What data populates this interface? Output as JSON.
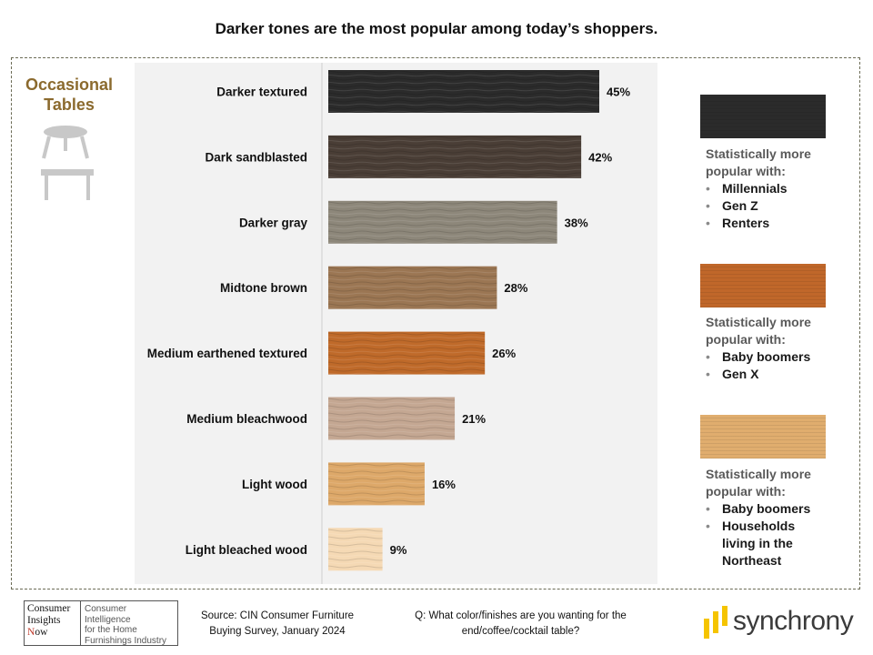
{
  "header": {
    "title": "Darker tones are the most popular among today’s shoppers."
  },
  "side": {
    "title_line1": "Occasional",
    "title_line2": "Tables",
    "icon_round": "round-table-icon",
    "icon_rect": "rectangular-table-icon"
  },
  "chart_data": {
    "type": "bar",
    "orientation": "horizontal",
    "categories": [
      "Darker textured",
      "Dark sandblasted",
      "Darker gray",
      "Midtone brown",
      "Medium earthened textured",
      "Medium bleachwood",
      "Light wood",
      "Light bleached wood"
    ],
    "values": [
      45,
      42,
      38,
      28,
      26,
      21,
      16,
      9
    ],
    "value_labels": [
      "45%",
      "42%",
      "38%",
      "28%",
      "26%",
      "21%",
      "16%",
      "9%"
    ],
    "unit": "%",
    "xlim": [
      0,
      50
    ],
    "colors": [
      "#2b2b2b",
      "#4a3e36",
      "#8d877a",
      "#9b7653",
      "#bf6a2a",
      "#c4a792",
      "#dda869",
      "#f5d9b4"
    ],
    "grid": false,
    "legend": "none"
  },
  "callouts": [
    {
      "swatch_color": "#2b2b2b",
      "heading_line1": "Statistically more",
      "heading_line2": "popular with:",
      "items": [
        "Millennials",
        "Gen Z",
        "Renters"
      ]
    },
    {
      "swatch_color": "#c0672a",
      "heading_line1": "Statistically more",
      "heading_line2": "popular with:",
      "items": [
        "Baby boomers",
        "Gen X"
      ]
    },
    {
      "swatch_color": "#e0ad6e",
      "heading_line1": "Statistically more",
      "heading_line2": "popular with:",
      "items": [
        "Baby boomers",
        "Households living in the Northeast"
      ]
    }
  ],
  "footer": {
    "source_line1": "Source:  CIN Consumer Furniture",
    "source_line2": "Buying Survey, January 2024",
    "question_line1": "Q: What color/finishes are you wanting for the",
    "question_line2": "end/coffee/cocktail table?",
    "cin_logo": {
      "line1": "Consumer",
      "line2": "Insights",
      "line3_n": "N",
      "line3_rest": "ow",
      "tag1": "Consumer Intelligence",
      "tag2": "for the Home",
      "tag3": "Furnishings Industry"
    },
    "brand": "synchrony"
  }
}
